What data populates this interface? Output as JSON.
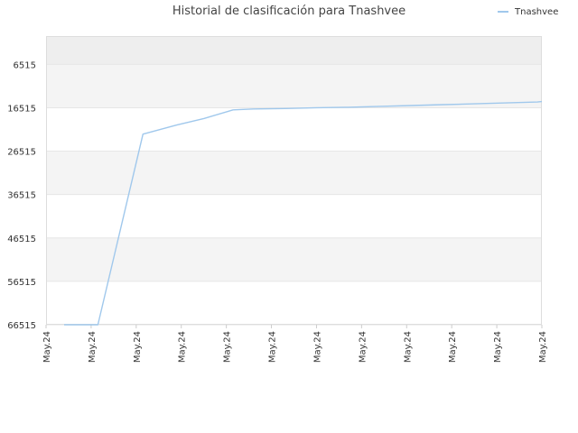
{
  "chart_data": {
    "type": "line",
    "title": "Historial de clasificación para Tnashvee",
    "xlabel": "",
    "ylabel": "",
    "legend_position": "top-right",
    "y_reversed": true,
    "ylim": [
      66515,
      0
    ],
    "yticks": [
      6515,
      16515,
      26515,
      36515,
      46515,
      56515,
      66515
    ],
    "x_tick_labels": [
      "May.24",
      "May.24",
      "May.24",
      "May.24",
      "May.24",
      "May.24",
      "May.24",
      "May.24",
      "May.24",
      "May.24",
      "May.24",
      "May.24"
    ],
    "grid": true,
    "colors": {
      "line": "#a0c8ec",
      "band_dark": "#eeeeee",
      "band_light": "#f4f4f4",
      "grid": "#e6e6e6"
    },
    "series": [
      {
        "name": "Tnashvee",
        "x": [
          0.4,
          1.15,
          2.15,
          2.9,
          3.5,
          4.15,
          4.6,
          5.3,
          6.0,
          6.7,
          7.4,
          8.1,
          8.8,
          9.5,
          10.2,
          10.9,
          11.0
        ],
        "y": [
          66515,
          66515,
          22600,
          20500,
          19000,
          17000,
          16800,
          16700,
          16500,
          16400,
          16200,
          16000,
          15800,
          15600,
          15400,
          15200,
          15100
        ]
      }
    ]
  }
}
